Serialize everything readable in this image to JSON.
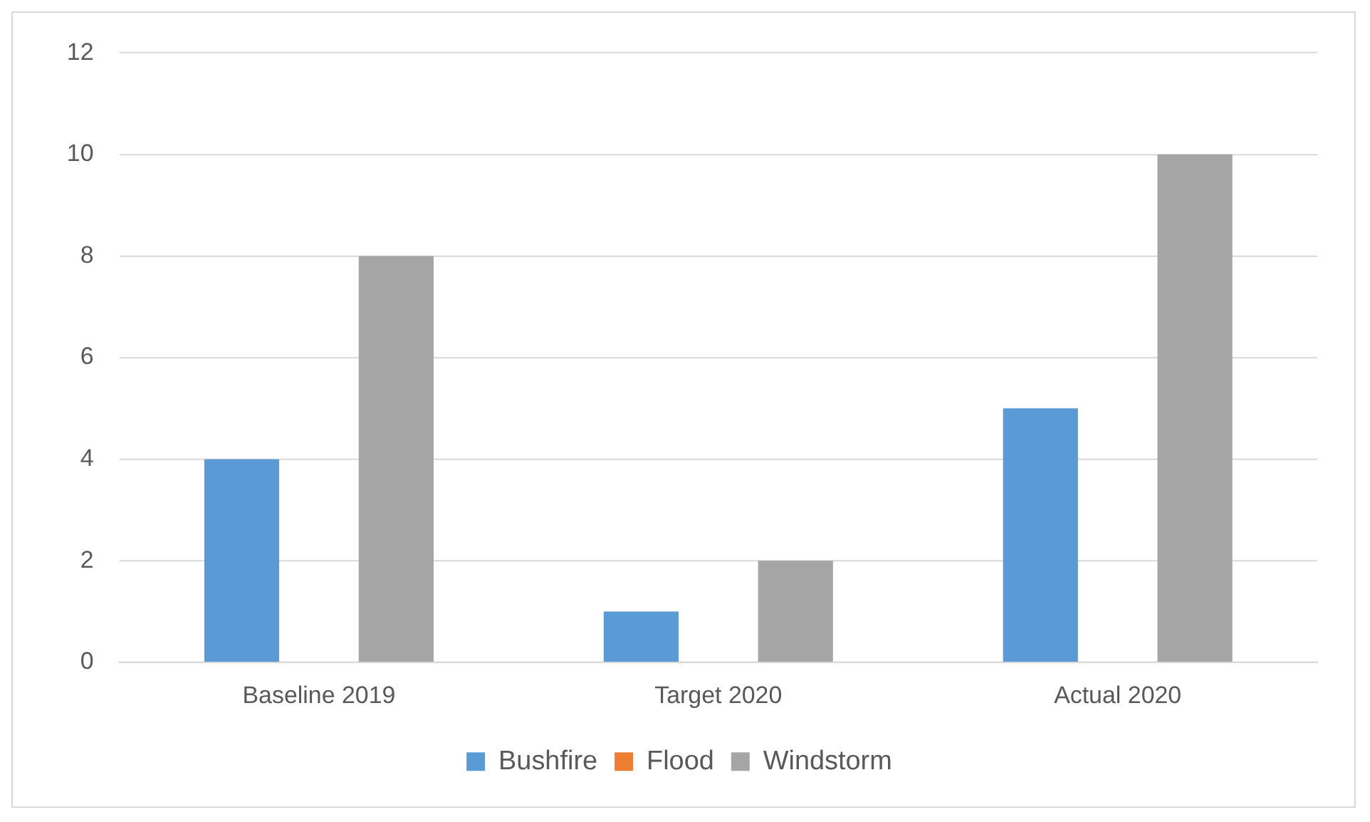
{
  "chart_data": {
    "type": "bar",
    "categories": [
      "Baseline 2019",
      "Target 2020",
      "Actual 2020"
    ],
    "series": [
      {
        "name": "Bushfire",
        "color": "#5b9bd5",
        "values": [
          4,
          1,
          5
        ]
      },
      {
        "name": "Flood",
        "color": "#ed7d31",
        "values": [
          0,
          0,
          0
        ]
      },
      {
        "name": "Windstorm",
        "color": "#a5a5a5",
        "values": [
          8,
          2,
          10
        ]
      }
    ],
    "ylim": [
      0,
      12
    ],
    "yticks": [
      0,
      2,
      4,
      6,
      8,
      10,
      12
    ],
    "grid": "y",
    "legend": "bottom"
  }
}
